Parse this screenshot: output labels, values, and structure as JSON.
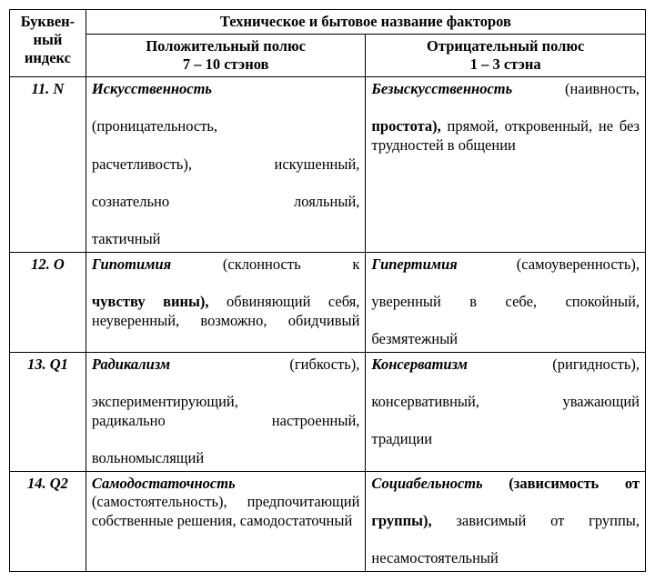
{
  "table": {
    "columns": [
      "c1",
      "c2",
      "c3"
    ],
    "border_color": "#000000",
    "background_color": "#ffffff",
    "font_family": "Times New Roman",
    "font_size_pt": 13,
    "header": {
      "index_col": {
        "l1": "Буквен-",
        "l2": "ный",
        "l3": "индекс"
      },
      "title": "Техническое и бытовое название факторов",
      "pos_title_l1": "Положительный полюс",
      "pos_title_l2": "7 – 10 стэнов",
      "neg_title_l1": "Отрицательный полюс",
      "neg_title_l2": "1 – 3 стэна"
    },
    "rows": [
      {
        "idx": "11. N",
        "pos": {
          "bold": "Искусственность",
          "tail1": "(проницательность,",
          "tail2": "расчетливость),",
          "tail3": "искушенный,",
          "tail4": "сознательно",
          "tail5": "лояльный,",
          "tail6": "тактичный"
        },
        "neg": {
          "bold": "Безыскусственность",
          "tail1": "(наивность,",
          "tail2": "простота),",
          "tail3": "прямой, откровенный, не без трудностей в общении"
        }
      },
      {
        "idx": "12. O",
        "pos": {
          "bold": "Гипотимия",
          "tail1": "(склонность",
          "tail2": "к",
          "tail3": "чувству",
          "tail4": "вины),",
          "tail5": "обвиняющий себя, неуверенный, возможно, обидчивый"
        },
        "neg": {
          "bold": "Гипертимия",
          "tail1": "(самоуверенность),",
          "tail2": "уверенный",
          "tail3": "в",
          "tail4": "себе,",
          "tail5": "спокойный,",
          "tail6": "безмятежный"
        }
      },
      {
        "idx": "13. Q1",
        "pos": {
          "bold": "Радикализм",
          "tail1": "(гибкость),",
          "tail2": "экспериментирующий,",
          "tail3": "радикально",
          "tail4": "настроенный,",
          "tail5": "вольномыслящий"
        },
        "neg": {
          "bold": "Консерватизм",
          "tail1": "(ригидность),",
          "tail2": "консервативный,",
          "tail3": "уважающий",
          "tail4": "традиции"
        }
      },
      {
        "idx": "14. Q2",
        "pos": {
          "bold": "Самодостаточность",
          "tail1": "(самостоятельность), предпочитающий собственные решения, самодостаточный"
        },
        "neg": {
          "bold": "Социабельность",
          "tail1": "(зависимость",
          "tail2": "от",
          "tail3": "группы),",
          "tail4": "зависимый",
          "tail5": "от",
          "tail6": "группы,",
          "tail7": "несамостоятельный"
        }
      }
    ]
  }
}
